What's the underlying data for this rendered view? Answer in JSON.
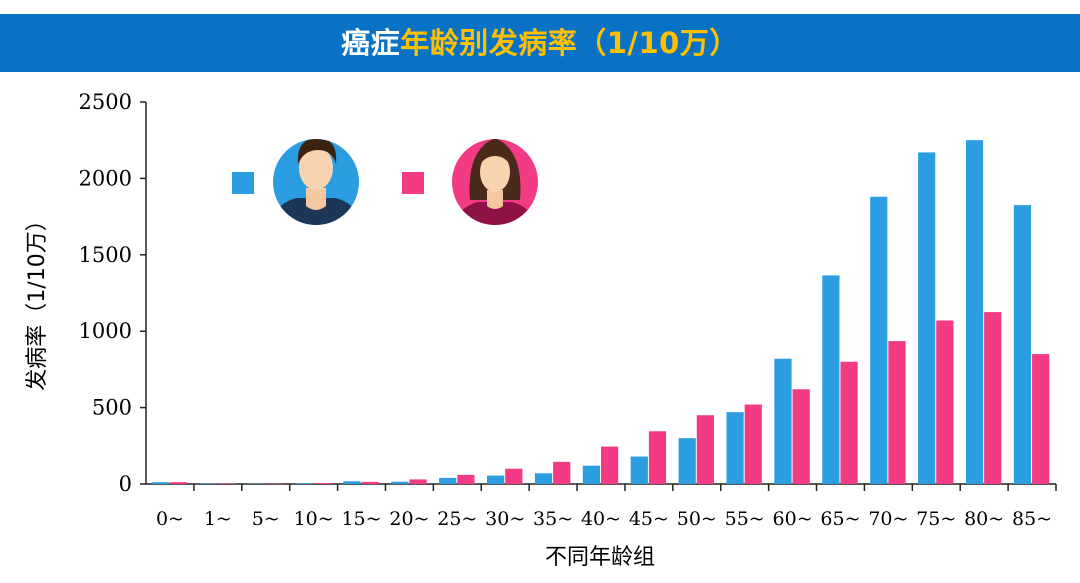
{
  "title": {
    "part1": "癌症",
    "part2": "年龄别发病率（1/10万）"
  },
  "colors": {
    "male": "#2a9ee0",
    "female": "#f23a85",
    "title_bar": "#0a72c4",
    "title_accent": "#ffc000"
  },
  "legend": {
    "male_icon": "male-avatar-icon",
    "female_icon": "female-avatar-icon"
  },
  "chart_data": {
    "type": "bar",
    "title": "癌症年龄别发病率（1/10万）",
    "xlabel": "不同年龄组",
    "ylabel": "发病率（1/10万）",
    "ylim": [
      0,
      2500
    ],
    "yticks": [
      "0",
      "500",
      "1000",
      "1500",
      "2000",
      "2500"
    ],
    "categories": [
      "0~",
      "1~",
      "5~",
      "10~",
      "15~",
      "20~",
      "25~",
      "30~",
      "35~",
      "40~",
      "45~",
      "50~",
      "55~",
      "60~",
      "65~",
      "70~",
      "75~",
      "80~",
      "85~"
    ],
    "series": [
      {
        "color": "#2a9ee0",
        "values": [
          12,
          3,
          2,
          4,
          18,
          15,
          40,
          55,
          70,
          120,
          180,
          300,
          470,
          820,
          1365,
          1880,
          2170,
          2250,
          1825
        ]
      },
      {
        "color": "#f23a85",
        "values": [
          12,
          3,
          2,
          6,
          14,
          30,
          60,
          100,
          145,
          245,
          345,
          450,
          520,
          620,
          800,
          935,
          1070,
          1125,
          850
        ]
      }
    ],
    "grid": false,
    "legend_position": "top-left"
  }
}
